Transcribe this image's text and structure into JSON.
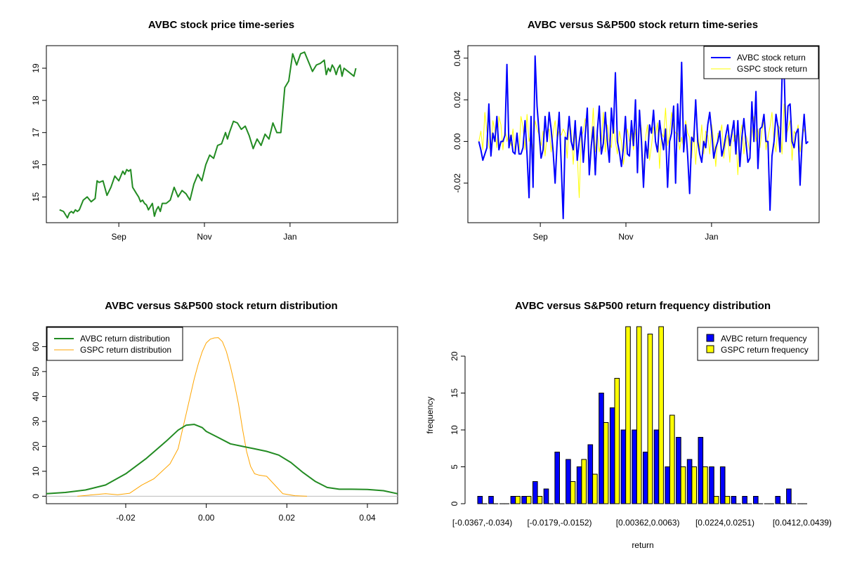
{
  "colors": {
    "avbc_price": "#228b22",
    "avbc_return": "#0000ff",
    "gspc_return": "#ffff00",
    "avbc_density": "#228b22",
    "gspc_density": "#ffa500",
    "avbc_bar": "#0000ff",
    "gspc_bar": "#ffff00"
  },
  "chart_data": [
    {
      "type": "line",
      "title": "AVBC stock price time-series",
      "xlabel": "",
      "ylabel": "",
      "x_ticks": [
        "Sep",
        "Nov",
        "Jan"
      ],
      "y_ticks": [
        15,
        16,
        17,
        18,
        19
      ],
      "ylim": [
        14.2,
        19.7
      ],
      "x_range": [
        0,
        160
      ],
      "x_tick_positions": [
        33,
        72,
        111
      ],
      "series": [
        {
          "name": "AVBC price",
          "x": [
            0,
            2,
            4,
            5,
            6,
            7,
            8,
            9,
            10,
            12,
            14,
            16,
            18,
            19,
            20,
            22,
            24,
            26,
            28,
            30,
            32,
            33,
            34,
            35,
            36,
            37,
            38,
            39,
            40,
            41,
            42,
            43,
            44,
            45,
            46,
            47,
            48,
            49,
            50,
            51,
            52,
            54,
            56,
            58,
            60,
            62,
            64,
            66,
            68,
            70,
            72,
            74,
            76,
            78,
            80,
            82,
            84,
            85,
            86,
            88,
            90,
            92,
            94,
            96,
            98,
            100,
            102,
            104,
            106,
            108,
            110,
            112,
            114,
            116,
            118,
            120,
            122,
            124,
            126,
            128,
            130,
            132,
            134,
            135,
            136,
            137,
            138,
            139,
            140,
            141,
            142,
            143,
            144,
            146,
            148,
            149,
            150
          ],
          "values": [
            14.6,
            14.55,
            14.35,
            14.5,
            14.55,
            14.5,
            14.6,
            14.55,
            14.6,
            14.9,
            15.0,
            14.85,
            14.95,
            15.5,
            15.45,
            15.5,
            15.05,
            15.3,
            15.65,
            15.5,
            15.8,
            15.7,
            15.85,
            15.8,
            15.85,
            15.3,
            15.2,
            15.1,
            15.0,
            14.85,
            14.9,
            14.8,
            14.75,
            14.6,
            14.7,
            14.8,
            14.4,
            14.6,
            14.7,
            14.55,
            14.8,
            14.8,
            14.9,
            15.3,
            15.0,
            15.2,
            15.1,
            14.9,
            15.4,
            15.7,
            15.5,
            16.0,
            16.3,
            16.2,
            16.6,
            16.65,
            17.0,
            16.8,
            17.0,
            17.35,
            17.3,
            17.1,
            17.2,
            16.9,
            16.5,
            16.8,
            16.6,
            16.95,
            16.8,
            17.3,
            17.0,
            17.0,
            18.4,
            18.6,
            19.45,
            19.1,
            19.45,
            19.5,
            19.2,
            18.9,
            19.1,
            19.15,
            19.25,
            18.8,
            19.0,
            18.9,
            19.1,
            19.0,
            18.8,
            19.0,
            19.1,
            18.75,
            19.0,
            18.9,
            18.8,
            18.75,
            19.0
          ]
        }
      ]
    },
    {
      "type": "line",
      "title": "AVBC versus S&P500 stock return time-series",
      "xlabel": "",
      "ylabel": "",
      "x_ticks": [
        "Sep",
        "Nov",
        "Jan"
      ],
      "y_ticks": [
        "-0.02",
        "0.00",
        "0.02",
        "0.04"
      ],
      "ylim": [
        -0.039,
        0.046
      ],
      "x_range": [
        0,
        160
      ],
      "x_tick_positions": [
        33,
        72,
        111
      ],
      "legend": {
        "placement": "top-right",
        "entries": [
          "AVBC stock return",
          "GSPC stock return"
        ]
      },
      "series": [
        {
          "name": "AVBC stock return",
          "values": [
            0.0,
            -0.004,
            -0.009,
            -0.006,
            -0.003,
            0.018,
            -0.007,
            0.004,
            0.0,
            0.012,
            -0.004,
            0.0,
            0.0,
            0.003,
            0.037,
            -0.003,
            0.003,
            -0.005,
            -0.006,
            0.004,
            -0.006,
            -0.006,
            -0.003,
            0.01,
            -0.006,
            -0.027,
            0.012,
            -0.022,
            0.041,
            0.017,
            0.004,
            -0.008,
            -0.004,
            0.012,
            0.0,
            0.014,
            0.006,
            -0.005,
            -0.02,
            0.0,
            0.014,
            -0.01,
            -0.037,
            0.002,
            0.001,
            0.012,
            0.0,
            -0.004,
            0.01,
            -0.009,
            0.0,
            0.007,
            -0.01,
            0.003,
            0.016,
            -0.016,
            -0.002,
            0.007,
            -0.016,
            0.005,
            0.017,
            -0.006,
            -0.001,
            0.014,
            0.0,
            -0.01,
            0.016,
            0.004,
            0.033,
            0.0,
            -0.005,
            -0.012,
            -0.003,
            0.012,
            -0.006,
            -0.007,
            0.01,
            -0.002,
            0.02,
            -0.015,
            0.015,
            0.0,
            -0.022,
            0.0,
            -0.008,
            0.008,
            0.004,
            0.015,
            0.0,
            -0.005,
            0.01,
            0.002,
            -0.004,
            0.006,
            -0.022,
            0.0,
            0.004,
            0.017,
            -0.02,
            0.018,
            0.0,
            0.038,
            -0.005,
            0.008,
            -0.007,
            -0.025,
            0.002,
            0.0,
            0.02,
            0.0,
            -0.006,
            -0.01,
            0.0,
            -0.003,
            0.008,
            0.014,
            0.004,
            -0.008,
            -0.003,
            0.0,
            0.005,
            -0.007,
            -0.003,
            0.003,
            0.008,
            -0.002,
            0.004,
            0.01,
            -0.006,
            0.01,
            -0.012,
            0.002,
            0.011,
            0.0,
            -0.01,
            -0.008,
            0.019,
            0.0,
            0.024,
            -0.013,
            0.006,
            0.007,
            0.013,
            0.0,
            0.0,
            -0.033,
            -0.007,
            0.0,
            0.013,
            0.007,
            -0.005,
            0.03,
            0.035,
            0.0,
            0.017,
            0.018,
            0.0,
            -0.003,
            0.004,
            0.006,
            -0.021,
            0.0,
            0.013,
            -0.001,
            0.0
          ]
        },
        {
          "name": "GSPC stock return",
          "values": [
            0.0,
            0.005,
            -0.004,
            0.014,
            0.005,
            -0.002,
            -0.005,
            0.01,
            0.005,
            -0.003,
            0.012,
            0.008,
            -0.004,
            0.006,
            0.0,
            0.004,
            -0.002,
            0.006,
            -0.005,
            0.003,
            -0.006,
            0.012,
            0.007,
            -0.004,
            0.013,
            0.0,
            0.004,
            -0.004,
            0.01,
            0.006,
            0.003,
            -0.002,
            0.005,
            -0.007,
            0.003,
            0.006,
            -0.005,
            0.004,
            0.01,
            0.001,
            0.005,
            0.003,
            0.006,
            0.004,
            -0.008,
            0.01,
            0.005,
            -0.011,
            0.004,
            -0.006,
            -0.027,
            0.002,
            0.005,
            0.011,
            0.007,
            -0.011,
            0.0,
            0.016,
            -0.005,
            0.004,
            -0.005,
            0.0,
            0.014,
            -0.005,
            0.008,
            0.0,
            -0.003,
            0.01,
            0.0,
            -0.006,
            0.005,
            0.0,
            -0.011,
            -0.003,
            0.006,
            0.0,
            0.004,
            -0.004,
            0.006,
            -0.008,
            0.012,
            0.006,
            -0.017,
            0.002,
            0.008,
            -0.009,
            -0.002,
            0.007,
            0.003,
            0.009,
            -0.013,
            0.004,
            0.002,
            0.016,
            -0.002,
            0.004,
            0.014,
            0.006,
            0.004,
            0.004,
            -0.004,
            0.002,
            -0.003,
            0.01,
            0.004,
            0.002,
            -0.008,
            0.005,
            -0.011,
            0.004,
            -0.004,
            0.008,
            -0.006,
            0.005,
            0.003,
            -0.006,
            0.008,
            0.0,
            -0.012,
            0.004,
            0.003,
            0.008,
            -0.008,
            0.0,
            0.003,
            -0.01,
            0.006,
            0.0,
            0.003,
            -0.016,
            0.002,
            0.008,
            -0.006,
            0.003,
            0.0,
            -0.005,
            0.004,
            0.012,
            0.0,
            0.006,
            -0.003,
            0.005,
            0.01,
            -0.004,
            0.002,
            0.007,
            0.014,
            0.0,
            -0.005,
            0.008,
            0.006,
            -0.006,
            0.018,
            0.003,
            0.006,
            0.01,
            -0.009,
            0.005,
            0.003,
            0.008,
            -0.005,
            0.002,
            0.006,
            0.002
          ]
        }
      ]
    },
    {
      "type": "line",
      "title": "AVBC versus S&P500 stock return distribution",
      "xlabel": "",
      "ylabel": "",
      "x_ticks": [
        "-0.02",
        "0.00",
        "0.02",
        "0.04"
      ],
      "x_tick_values": [
        -0.02,
        0.0,
        0.02,
        0.04
      ],
      "y_ticks": [
        0,
        10,
        20,
        30,
        40,
        50,
        60
      ],
      "xlim": [
        -0.0397,
        0.0475
      ],
      "ylim": [
        -3,
        68
      ],
      "legend": {
        "placement": "top-left",
        "entries": [
          "AVBC return distribution",
          "GSPC return distribution"
        ]
      },
      "series": [
        {
          "name": "AVBC return distribution",
          "x": [
            -0.0397,
            -0.035,
            -0.03,
            -0.025,
            -0.02,
            -0.015,
            -0.01,
            -0.007,
            -0.005,
            -0.003,
            -0.001,
            0.0,
            0.003,
            0.006,
            0.009,
            0.012,
            0.015,
            0.018,
            0.021,
            0.024,
            0.027,
            0.03,
            0.033,
            0.036,
            0.04,
            0.044,
            0.0475
          ],
          "values": [
            1,
            1.5,
            2.5,
            4.5,
            9,
            15,
            22,
            26.5,
            28.5,
            28.8,
            27.5,
            26,
            23.5,
            21,
            20,
            19,
            18,
            16.5,
            13.5,
            9.5,
            6,
            3.5,
            2.8,
            2.8,
            2.7,
            2.2,
            1
          ]
        },
        {
          "name": "GSPC return distribution",
          "x": [
            -0.032,
            -0.028,
            -0.025,
            -0.022,
            -0.019,
            -0.016,
            -0.013,
            -0.011,
            -0.009,
            -0.007,
            -0.006,
            -0.005,
            -0.004,
            -0.003,
            -0.002,
            -0.001,
            0.0,
            0.001,
            0.002,
            0.003,
            0.004,
            0.005,
            0.006,
            0.007,
            0.008,
            0.009,
            0.01,
            0.011,
            0.012,
            0.013,
            0.015,
            0.017,
            0.019,
            0.022,
            0.025
          ],
          "values": [
            0,
            0.6,
            1,
            0.6,
            1.2,
            4.5,
            7,
            10,
            13,
            19,
            26,
            33,
            40,
            47,
            53,
            58,
            61.5,
            63,
            63.5,
            63.6,
            62,
            58,
            52,
            45,
            37,
            27,
            18,
            12,
            9,
            8.5,
            8,
            4.5,
            1,
            0.2,
            0
          ]
        }
      ]
    },
    {
      "type": "bar",
      "title": "AVBC versus S&P500 return frequency distribution",
      "xlabel": "return",
      "ylabel": "frequency",
      "x_tick_labels": [
        "[-0.0367,-0.034)",
        "[-0.0179,-0.0152)",
        "[0.00362,0.0063)",
        "[0.0224,0.0251)",
        "[0.0412,0.0439)"
      ],
      "x_tick_bins": [
        0,
        7,
        15,
        22,
        29
      ],
      "y_ticks": [
        0,
        5,
        10,
        15,
        20
      ],
      "ylim": [
        0,
        24
      ],
      "legend": {
        "placement": "top-right",
        "entries": [
          "AVBC return frequency",
          "GSPC return frequency"
        ]
      },
      "bin_count": 30,
      "series": [
        {
          "name": "AVBC return frequency",
          "values": [
            1,
            1,
            0,
            1,
            1,
            3,
            2,
            7,
            6,
            5,
            8,
            15,
            13,
            10,
            10,
            7,
            10,
            5,
            9,
            6,
            9,
            5,
            5,
            1,
            1,
            1,
            0,
            1,
            2,
            0
          ]
        },
        {
          "name": "GSPC return frequency",
          "values": [
            0,
            0,
            0,
            1,
            1,
            1,
            0,
            0,
            3,
            6,
            4,
            11,
            17,
            26,
            24,
            23,
            24,
            12,
            5,
            5,
            5,
            1,
            1,
            0,
            0,
            0,
            0,
            0,
            0,
            0
          ]
        }
      ]
    }
  ]
}
